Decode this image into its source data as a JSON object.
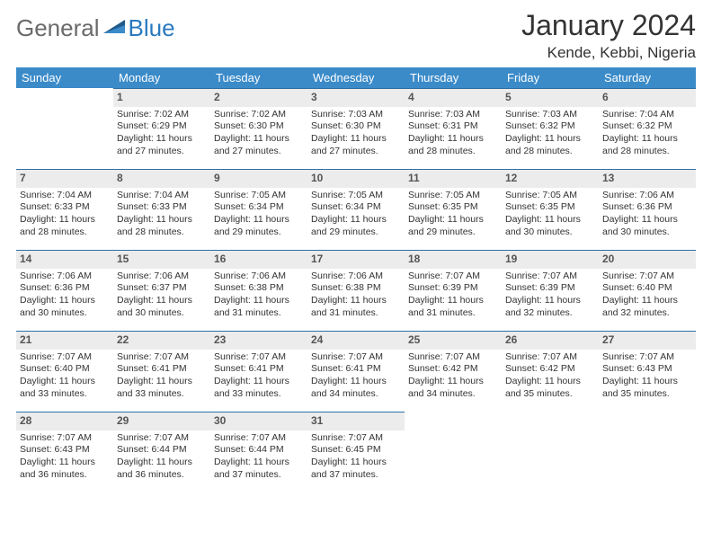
{
  "header": {
    "logo_general": "General",
    "logo_blue": "Blue",
    "month_title": "January 2024",
    "location": "Kende, Kebbi, Nigeria"
  },
  "calendar": {
    "headers": [
      "Sunday",
      "Monday",
      "Tuesday",
      "Wednesday",
      "Thursday",
      "Friday",
      "Saturday"
    ],
    "header_bg": "#3b8bc9",
    "header_fg": "#ffffff",
    "band_bg": "#ececec",
    "band_border": "#2d6fa3",
    "weeks": [
      [
        {
          "num": "",
          "sunrise": "",
          "sunset": "",
          "daylight": ""
        },
        {
          "num": "1",
          "sunrise": "Sunrise: 7:02 AM",
          "sunset": "Sunset: 6:29 PM",
          "daylight": "Daylight: 11 hours and 27 minutes."
        },
        {
          "num": "2",
          "sunrise": "Sunrise: 7:02 AM",
          "sunset": "Sunset: 6:30 PM",
          "daylight": "Daylight: 11 hours and 27 minutes."
        },
        {
          "num": "3",
          "sunrise": "Sunrise: 7:03 AM",
          "sunset": "Sunset: 6:30 PM",
          "daylight": "Daylight: 11 hours and 27 minutes."
        },
        {
          "num": "4",
          "sunrise": "Sunrise: 7:03 AM",
          "sunset": "Sunset: 6:31 PM",
          "daylight": "Daylight: 11 hours and 28 minutes."
        },
        {
          "num": "5",
          "sunrise": "Sunrise: 7:03 AM",
          "sunset": "Sunset: 6:32 PM",
          "daylight": "Daylight: 11 hours and 28 minutes."
        },
        {
          "num": "6",
          "sunrise": "Sunrise: 7:04 AM",
          "sunset": "Sunset: 6:32 PM",
          "daylight": "Daylight: 11 hours and 28 minutes."
        }
      ],
      [
        {
          "num": "7",
          "sunrise": "Sunrise: 7:04 AM",
          "sunset": "Sunset: 6:33 PM",
          "daylight": "Daylight: 11 hours and 28 minutes."
        },
        {
          "num": "8",
          "sunrise": "Sunrise: 7:04 AM",
          "sunset": "Sunset: 6:33 PM",
          "daylight": "Daylight: 11 hours and 28 minutes."
        },
        {
          "num": "9",
          "sunrise": "Sunrise: 7:05 AM",
          "sunset": "Sunset: 6:34 PM",
          "daylight": "Daylight: 11 hours and 29 minutes."
        },
        {
          "num": "10",
          "sunrise": "Sunrise: 7:05 AM",
          "sunset": "Sunset: 6:34 PM",
          "daylight": "Daylight: 11 hours and 29 minutes."
        },
        {
          "num": "11",
          "sunrise": "Sunrise: 7:05 AM",
          "sunset": "Sunset: 6:35 PM",
          "daylight": "Daylight: 11 hours and 29 minutes."
        },
        {
          "num": "12",
          "sunrise": "Sunrise: 7:05 AM",
          "sunset": "Sunset: 6:35 PM",
          "daylight": "Daylight: 11 hours and 30 minutes."
        },
        {
          "num": "13",
          "sunrise": "Sunrise: 7:06 AM",
          "sunset": "Sunset: 6:36 PM",
          "daylight": "Daylight: 11 hours and 30 minutes."
        }
      ],
      [
        {
          "num": "14",
          "sunrise": "Sunrise: 7:06 AM",
          "sunset": "Sunset: 6:36 PM",
          "daylight": "Daylight: 11 hours and 30 minutes."
        },
        {
          "num": "15",
          "sunrise": "Sunrise: 7:06 AM",
          "sunset": "Sunset: 6:37 PM",
          "daylight": "Daylight: 11 hours and 30 minutes."
        },
        {
          "num": "16",
          "sunrise": "Sunrise: 7:06 AM",
          "sunset": "Sunset: 6:38 PM",
          "daylight": "Daylight: 11 hours and 31 minutes."
        },
        {
          "num": "17",
          "sunrise": "Sunrise: 7:06 AM",
          "sunset": "Sunset: 6:38 PM",
          "daylight": "Daylight: 11 hours and 31 minutes."
        },
        {
          "num": "18",
          "sunrise": "Sunrise: 7:07 AM",
          "sunset": "Sunset: 6:39 PM",
          "daylight": "Daylight: 11 hours and 31 minutes."
        },
        {
          "num": "19",
          "sunrise": "Sunrise: 7:07 AM",
          "sunset": "Sunset: 6:39 PM",
          "daylight": "Daylight: 11 hours and 32 minutes."
        },
        {
          "num": "20",
          "sunrise": "Sunrise: 7:07 AM",
          "sunset": "Sunset: 6:40 PM",
          "daylight": "Daylight: 11 hours and 32 minutes."
        }
      ],
      [
        {
          "num": "21",
          "sunrise": "Sunrise: 7:07 AM",
          "sunset": "Sunset: 6:40 PM",
          "daylight": "Daylight: 11 hours and 33 minutes."
        },
        {
          "num": "22",
          "sunrise": "Sunrise: 7:07 AM",
          "sunset": "Sunset: 6:41 PM",
          "daylight": "Daylight: 11 hours and 33 minutes."
        },
        {
          "num": "23",
          "sunrise": "Sunrise: 7:07 AM",
          "sunset": "Sunset: 6:41 PM",
          "daylight": "Daylight: 11 hours and 33 minutes."
        },
        {
          "num": "24",
          "sunrise": "Sunrise: 7:07 AM",
          "sunset": "Sunset: 6:41 PM",
          "daylight": "Daylight: 11 hours and 34 minutes."
        },
        {
          "num": "25",
          "sunrise": "Sunrise: 7:07 AM",
          "sunset": "Sunset: 6:42 PM",
          "daylight": "Daylight: 11 hours and 34 minutes."
        },
        {
          "num": "26",
          "sunrise": "Sunrise: 7:07 AM",
          "sunset": "Sunset: 6:42 PM",
          "daylight": "Daylight: 11 hours and 35 minutes."
        },
        {
          "num": "27",
          "sunrise": "Sunrise: 7:07 AM",
          "sunset": "Sunset: 6:43 PM",
          "daylight": "Daylight: 11 hours and 35 minutes."
        }
      ],
      [
        {
          "num": "28",
          "sunrise": "Sunrise: 7:07 AM",
          "sunset": "Sunset: 6:43 PM",
          "daylight": "Daylight: 11 hours and 36 minutes."
        },
        {
          "num": "29",
          "sunrise": "Sunrise: 7:07 AM",
          "sunset": "Sunset: 6:44 PM",
          "daylight": "Daylight: 11 hours and 36 minutes."
        },
        {
          "num": "30",
          "sunrise": "Sunrise: 7:07 AM",
          "sunset": "Sunset: 6:44 PM",
          "daylight": "Daylight: 11 hours and 37 minutes."
        },
        {
          "num": "31",
          "sunrise": "Sunrise: 7:07 AM",
          "sunset": "Sunset: 6:45 PM",
          "daylight": "Daylight: 11 hours and 37 minutes."
        },
        {
          "num": "",
          "sunrise": "",
          "sunset": "",
          "daylight": ""
        },
        {
          "num": "",
          "sunrise": "",
          "sunset": "",
          "daylight": ""
        },
        {
          "num": "",
          "sunrise": "",
          "sunset": "",
          "daylight": ""
        }
      ]
    ]
  }
}
